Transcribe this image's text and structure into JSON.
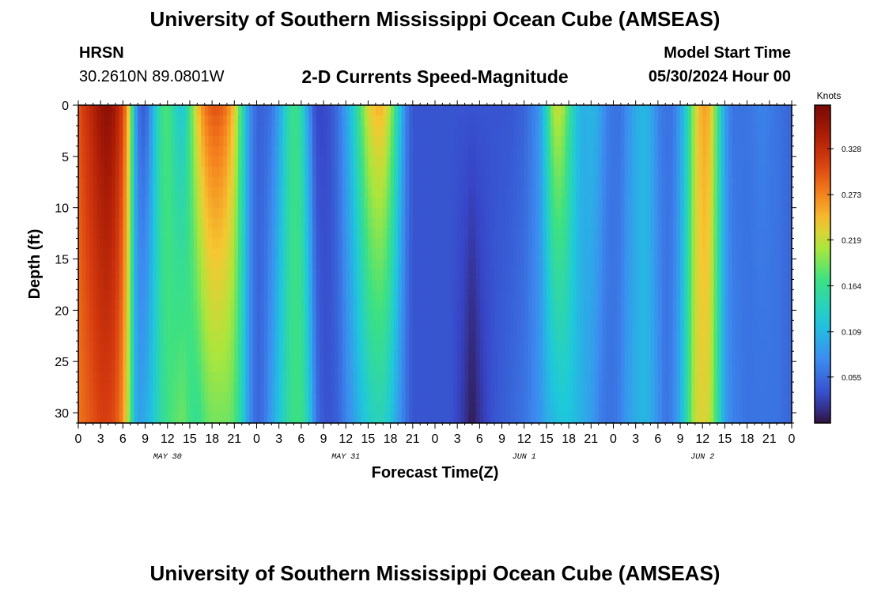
{
  "header": {
    "title": "University of Southern Mississippi Ocean Cube (AMSEAS)",
    "station_name": "HRSN",
    "station_coords": "30.2610N  89.0801W",
    "plot_title": "2-D Currents Speed-Magnitude",
    "model_start_label": "Model Start Time",
    "model_start_value": "05/30/2024 Hour 00"
  },
  "footer": {
    "title": "University of Southern Mississippi Ocean Cube (AMSEAS)"
  },
  "chart_data": {
    "type": "heatmap",
    "title": "2-D Currents Speed-Magnitude",
    "xlabel": "Forecast Time(Z)",
    "ylabel": "Depth (ft)",
    "x_unit": "hours since model start",
    "xlim": [
      0,
      96
    ],
    "ylim": [
      0,
      31
    ],
    "y_inverted": true,
    "x_ticks": [
      0,
      3,
      6,
      9,
      12,
      15,
      18,
      21,
      24,
      27,
      30,
      33,
      36,
      39,
      42,
      45,
      48,
      51,
      54,
      57,
      60,
      63,
      66,
      69,
      72,
      75,
      78,
      81,
      84,
      87,
      90,
      93,
      96
    ],
    "x_tick_labels": [
      "0",
      "3",
      "6",
      "9",
      "12",
      "15",
      "18",
      "21",
      "0",
      "3",
      "6",
      "9",
      "12",
      "15",
      "18",
      "21",
      "0",
      "3",
      "6",
      "9",
      "12",
      "15",
      "18",
      "21",
      "0",
      "3",
      "6",
      "9",
      "12",
      "15",
      "18",
      "21",
      "0"
    ],
    "day_labels": [
      {
        "hour": 12,
        "label": "MAY 30"
      },
      {
        "hour": 36,
        "label": "MAY 31"
      },
      {
        "hour": 60,
        "label": "JUN 1"
      },
      {
        "hour": 84,
        "label": "JUN 2"
      }
    ],
    "y_ticks": [
      0,
      5,
      10,
      15,
      20,
      25,
      30
    ],
    "y_tick_labels": [
      "0",
      "5",
      "10",
      "15",
      "20",
      "25",
      "30"
    ],
    "colorbar": {
      "unit": "Knots",
      "range": [
        0,
        0.38
      ],
      "ticks": [
        0.055,
        0.109,
        0.164,
        0.219,
        0.273,
        0.328
      ],
      "tick_labels": [
        "0.055",
        "0.109",
        "0.164",
        "0.219",
        "0.273",
        "0.328"
      ]
    },
    "speed_profile": [
      {
        "hour": 0,
        "surface": 0.3,
        "bottom": 0.28
      },
      {
        "hour": 1,
        "surface": 0.32,
        "bottom": 0.29
      },
      {
        "hour": 2,
        "surface": 0.34,
        "bottom": 0.3
      },
      {
        "hour": 3,
        "surface": 0.36,
        "bottom": 0.31
      },
      {
        "hour": 4,
        "surface": 0.37,
        "bottom": 0.31
      },
      {
        "hour": 5,
        "surface": 0.35,
        "bottom": 0.3
      },
      {
        "hour": 6,
        "surface": 0.31,
        "bottom": 0.27
      },
      {
        "hour": 7,
        "surface": 0.22,
        "bottom": 0.18
      },
      {
        "hour": 7.5,
        "surface": 0.12,
        "bottom": 0.12
      },
      {
        "hour": 8,
        "surface": 0.06,
        "bottom": 0.09
      },
      {
        "hour": 9,
        "surface": 0.04,
        "bottom": 0.1
      },
      {
        "hour": 10,
        "surface": 0.1,
        "bottom": 0.12
      },
      {
        "hour": 11,
        "surface": 0.16,
        "bottom": 0.15
      },
      {
        "hour": 12,
        "surface": 0.18,
        "bottom": 0.17
      },
      {
        "hour": 13,
        "surface": 0.14,
        "bottom": 0.18
      },
      {
        "hour": 14,
        "surface": 0.12,
        "bottom": 0.19
      },
      {
        "hour": 15,
        "surface": 0.17,
        "bottom": 0.17
      },
      {
        "hour": 16,
        "surface": 0.24,
        "bottom": 0.16
      },
      {
        "hour": 17,
        "surface": 0.28,
        "bottom": 0.18
      },
      {
        "hour": 18,
        "surface": 0.3,
        "bottom": 0.19
      },
      {
        "hour": 19,
        "surface": 0.3,
        "bottom": 0.19
      },
      {
        "hour": 20,
        "surface": 0.28,
        "bottom": 0.19
      },
      {
        "hour": 21,
        "surface": 0.24,
        "bottom": 0.18
      },
      {
        "hour": 22,
        "surface": 0.16,
        "bottom": 0.14
      },
      {
        "hour": 23,
        "surface": 0.08,
        "bottom": 0.08
      },
      {
        "hour": 24,
        "surface": 0.05,
        "bottom": 0.05
      },
      {
        "hour": 25,
        "surface": 0.05,
        "bottom": 0.06
      },
      {
        "hour": 26,
        "surface": 0.06,
        "bottom": 0.09
      },
      {
        "hour": 27,
        "surface": 0.09,
        "bottom": 0.12
      },
      {
        "hour": 28,
        "surface": 0.14,
        "bottom": 0.15
      },
      {
        "hour": 29,
        "surface": 0.17,
        "bottom": 0.17
      },
      {
        "hour": 30,
        "surface": 0.15,
        "bottom": 0.17
      },
      {
        "hour": 31,
        "surface": 0.08,
        "bottom": 0.13
      },
      {
        "hour": 32,
        "surface": 0.03,
        "bottom": 0.06
      },
      {
        "hour": 33,
        "surface": 0.03,
        "bottom": 0.04
      },
      {
        "hour": 34,
        "surface": 0.04,
        "bottom": 0.04
      },
      {
        "hour": 35,
        "surface": 0.06,
        "bottom": 0.05
      },
      {
        "hour": 36,
        "surface": 0.09,
        "bottom": 0.07
      },
      {
        "hour": 37,
        "surface": 0.13,
        "bottom": 0.09
      },
      {
        "hour": 38,
        "surface": 0.18,
        "bottom": 0.11
      },
      {
        "hour": 39,
        "surface": 0.23,
        "bottom": 0.13
      },
      {
        "hour": 40,
        "surface": 0.25,
        "bottom": 0.14
      },
      {
        "hour": 41,
        "surface": 0.25,
        "bottom": 0.14
      },
      {
        "hour": 42,
        "surface": 0.21,
        "bottom": 0.12
      },
      {
        "hour": 43,
        "surface": 0.14,
        "bottom": 0.09
      },
      {
        "hour": 44,
        "surface": 0.07,
        "bottom": 0.06
      },
      {
        "hour": 45,
        "surface": 0.04,
        "bottom": 0.04
      },
      {
        "hour": 46,
        "surface": 0.04,
        "bottom": 0.04
      },
      {
        "hour": 47,
        "surface": 0.04,
        "bottom": 0.04
      },
      {
        "hour": 48,
        "surface": 0.04,
        "bottom": 0.04
      },
      {
        "hour": 50,
        "surface": 0.04,
        "bottom": 0.04
      },
      {
        "hour": 52,
        "surface": 0.04,
        "bottom": 0.02
      },
      {
        "hour": 53,
        "surface": 0.04,
        "bottom": 0.004
      },
      {
        "hour": 54,
        "surface": 0.04,
        "bottom": 0.02
      },
      {
        "hour": 56,
        "surface": 0.04,
        "bottom": 0.04
      },
      {
        "hour": 58,
        "surface": 0.04,
        "bottom": 0.05
      },
      {
        "hour": 60,
        "surface": 0.05,
        "bottom": 0.06
      },
      {
        "hour": 62,
        "surface": 0.08,
        "bottom": 0.08
      },
      {
        "hour": 63,
        "surface": 0.14,
        "bottom": 0.1
      },
      {
        "hour": 64,
        "surface": 0.22,
        "bottom": 0.11
      },
      {
        "hour": 65,
        "surface": 0.22,
        "bottom": 0.12
      },
      {
        "hour": 66,
        "surface": 0.17,
        "bottom": 0.12
      },
      {
        "hour": 67,
        "surface": 0.12,
        "bottom": 0.11
      },
      {
        "hour": 68,
        "surface": 0.1,
        "bottom": 0.1
      },
      {
        "hour": 69,
        "surface": 0.11,
        "bottom": 0.09
      },
      {
        "hour": 70,
        "surface": 0.1,
        "bottom": 0.07
      },
      {
        "hour": 71,
        "surface": 0.07,
        "bottom": 0.06
      },
      {
        "hour": 72,
        "surface": 0.06,
        "bottom": 0.06
      },
      {
        "hour": 73,
        "surface": 0.06,
        "bottom": 0.07
      },
      {
        "hour": 74,
        "surface": 0.08,
        "bottom": 0.09
      },
      {
        "hour": 75,
        "surface": 0.1,
        "bottom": 0.1
      },
      {
        "hour": 76,
        "surface": 0.11,
        "bottom": 0.11
      },
      {
        "hour": 77,
        "surface": 0.1,
        "bottom": 0.1
      },
      {
        "hour": 78,
        "surface": 0.07,
        "bottom": 0.08
      },
      {
        "hour": 79,
        "surface": 0.06,
        "bottom": 0.06
      },
      {
        "hour": 80,
        "surface": 0.06,
        "bottom": 0.07
      },
      {
        "hour": 81,
        "surface": 0.09,
        "bottom": 0.1
      },
      {
        "hour": 82,
        "surface": 0.14,
        "bottom": 0.16
      },
      {
        "hour": 83,
        "surface": 0.22,
        "bottom": 0.22
      },
      {
        "hour": 84,
        "surface": 0.26,
        "bottom": 0.23
      },
      {
        "hour": 85,
        "surface": 0.25,
        "bottom": 0.22
      },
      {
        "hour": 86,
        "surface": 0.17,
        "bottom": 0.16
      },
      {
        "hour": 87,
        "surface": 0.09,
        "bottom": 0.09
      },
      {
        "hour": 88,
        "surface": 0.06,
        "bottom": 0.07
      },
      {
        "hour": 90,
        "surface": 0.06,
        "bottom": 0.06
      },
      {
        "hour": 92,
        "surface": 0.07,
        "bottom": 0.06
      },
      {
        "hour": 94,
        "surface": 0.06,
        "bottom": 0.06
      },
      {
        "hour": 96,
        "surface": 0.05,
        "bottom": 0.05
      }
    ]
  }
}
